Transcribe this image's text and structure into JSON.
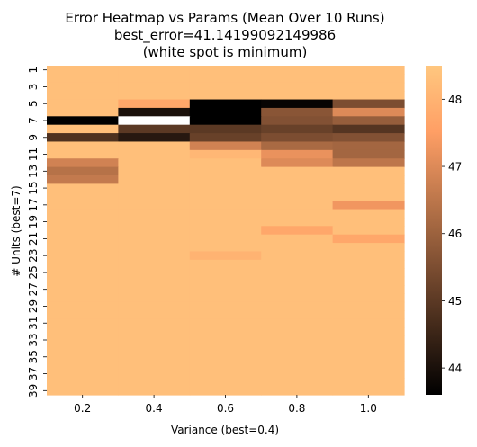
{
  "chart_data": {
    "type": "heatmap",
    "title_lines": [
      "Error Heatmap vs Params (Mean Over 10 Runs)",
      "best_error=41.14199092149986",
      "(white spot is minimum)"
    ],
    "xlabel": "Variance (best=0.4)",
    "ylabel": "# Units (best=7)",
    "x_categories": [
      "0.2",
      "0.4",
      "0.6",
      "0.8",
      "1.0"
    ],
    "y_categories": [
      "1",
      "2",
      "3",
      "4",
      "5",
      "6",
      "7",
      "8",
      "9",
      "10",
      "11",
      "12",
      "13",
      "14",
      "15",
      "16",
      "17",
      "18",
      "19",
      "20",
      "21",
      "22",
      "23",
      "24",
      "25",
      "26",
      "27",
      "28",
      "29",
      "30",
      "31",
      "32",
      "33",
      "34",
      "35",
      "36",
      "37",
      "38",
      "39"
    ],
    "y_tick_labels": [
      "1",
      "3",
      "5",
      "7",
      "9",
      "11",
      "13",
      "15",
      "17",
      "19",
      "21",
      "23",
      "25",
      "27",
      "29",
      "31",
      "33",
      "35",
      "37",
      "39"
    ],
    "values": [
      [
        48.3,
        48.3,
        48.3,
        48.3,
        48.3
      ],
      [
        48.3,
        48.3,
        48.3,
        48.3,
        48.3
      ],
      [
        48.3,
        48.3,
        48.3,
        48.3,
        48.3
      ],
      [
        48.3,
        48.3,
        48.3,
        48.3,
        48.3
      ],
      [
        48.3,
        47.7,
        43.6,
        43.7,
        45.5
      ],
      [
        48.3,
        44.0,
        43.6,
        45.7,
        47.0
      ],
      [
        43.6,
        41.14,
        43.6,
        45.6,
        45.9
      ],
      [
        48.3,
        45.0,
        45.0,
        45.2,
        44.9
      ],
      [
        44.8,
        44.2,
        45.2,
        45.5,
        45.6
      ],
      [
        48.3,
        48.3,
        46.8,
        46.2,
        46.1
      ],
      [
        48.3,
        48.3,
        48.1,
        47.2,
        46.1
      ],
      [
        46.8,
        48.3,
        48.3,
        47.0,
        46.5
      ],
      [
        46.4,
        48.3,
        48.3,
        48.3,
        48.3
      ],
      [
        46.6,
        48.3,
        48.3,
        48.3,
        48.3
      ],
      [
        48.3,
        48.3,
        48.3,
        48.3,
        48.3
      ],
      [
        48.3,
        48.3,
        48.3,
        48.3,
        48.3
      ],
      [
        48.3,
        48.3,
        48.3,
        48.3,
        47.3
      ],
      [
        48.3,
        48.3,
        48.3,
        48.3,
        48.3
      ],
      [
        48.3,
        48.3,
        48.3,
        48.3,
        48.3
      ],
      [
        48.3,
        48.3,
        48.3,
        47.7,
        48.3
      ],
      [
        48.3,
        48.3,
        48.3,
        48.3,
        47.7
      ],
      [
        48.3,
        48.3,
        48.3,
        48.3,
        48.3
      ],
      [
        48.3,
        48.3,
        48.0,
        48.3,
        48.3
      ],
      [
        48.3,
        48.3,
        48.3,
        48.3,
        48.3
      ],
      [
        48.3,
        48.3,
        48.3,
        48.3,
        48.3
      ],
      [
        48.3,
        48.3,
        48.3,
        48.3,
        48.3
      ],
      [
        48.3,
        48.3,
        48.3,
        48.3,
        48.3
      ],
      [
        48.3,
        48.3,
        48.3,
        48.3,
        48.3
      ],
      [
        48.3,
        48.3,
        48.3,
        48.3,
        48.3
      ],
      [
        48.3,
        48.3,
        48.3,
        48.3,
        48.3
      ],
      [
        48.3,
        48.3,
        48.3,
        48.3,
        48.3
      ],
      [
        48.3,
        48.3,
        48.3,
        48.3,
        48.3
      ],
      [
        48.3,
        48.3,
        48.3,
        48.3,
        48.3
      ],
      [
        48.3,
        48.3,
        48.3,
        48.3,
        48.3
      ],
      [
        48.3,
        48.3,
        48.3,
        48.3,
        48.3
      ],
      [
        48.3,
        48.3,
        48.3,
        48.3,
        48.3
      ],
      [
        48.3,
        48.3,
        48.3,
        48.3,
        48.3
      ],
      [
        48.3,
        48.3,
        48.3,
        48.3,
        48.3
      ],
      [
        48.3,
        48.3,
        48.3,
        48.3,
        48.3
      ]
    ],
    "colormap": "copper",
    "colorbar": {
      "range": [
        43.6,
        48.5
      ],
      "ticks": [
        44,
        45,
        46,
        47,
        48
      ],
      "tick_labels": [
        "44",
        "45",
        "46",
        "47",
        "48"
      ]
    },
    "grid": false,
    "legend": "colorbar-right"
  }
}
